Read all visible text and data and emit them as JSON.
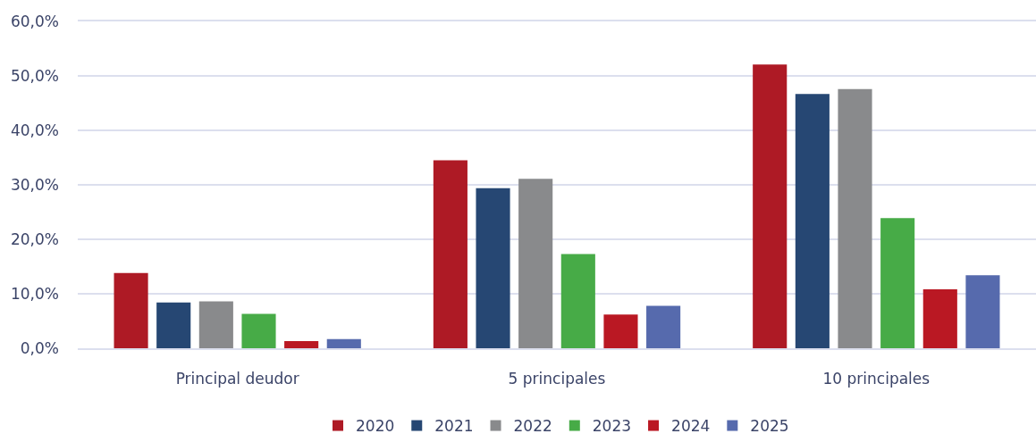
{
  "chart_data": {
    "type": "bar",
    "categories": [
      "Principal deudor",
      "5 principales",
      "10 principales"
    ],
    "series": [
      {
        "name": "2020",
        "color": "#ae1a25",
        "values": [
          13.8,
          34.5,
          52.1
        ]
      },
      {
        "name": "2021",
        "color": "#264773",
        "values": [
          8.4,
          29.4,
          46.7
        ]
      },
      {
        "name": "2022",
        "color": "#898a8c",
        "values": [
          8.6,
          31.1,
          47.6
        ]
      },
      {
        "name": "2023",
        "color": "#47ab47",
        "values": [
          6.3,
          17.3,
          23.9
        ]
      },
      {
        "name": "2024",
        "color": "#ba1823",
        "values": [
          1.3,
          6.2,
          10.8
        ]
      },
      {
        "name": "2025",
        "color": "#566aad",
        "values": [
          1.7,
          7.8,
          13.4
        ]
      }
    ],
    "ylim": [
      0,
      60
    ],
    "yticks": [
      {
        "value": 0,
        "label": "0,0%"
      },
      {
        "value": 10,
        "label": "10,0%"
      },
      {
        "value": 20,
        "label": "20,0%"
      },
      {
        "value": 30,
        "label": "30,0%"
      },
      {
        "value": 40,
        "label": "40,0%"
      },
      {
        "value": 50,
        "label": "50,0%"
      },
      {
        "value": 60,
        "label": "60,0%"
      }
    ],
    "grid": "y",
    "legend": "bottom"
  }
}
